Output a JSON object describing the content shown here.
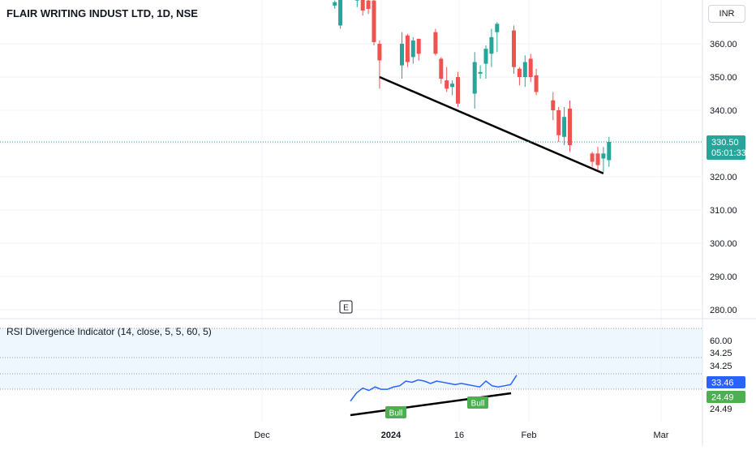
{
  "header": {
    "title": "FLAIR WRITING INDUST LTD, 1D, NSE",
    "currency": "INR"
  },
  "price_pane": {
    "last_price": "330.50",
    "countdown": "05:01:33",
    "event_marker": "E"
  },
  "indicator_pane": {
    "label": "RSI Divergence Indicator (14, close, 5, 5, 60, 5)",
    "levels": [
      "60.00",
      "34.25",
      "34.25",
      "24.49"
    ],
    "rsi_value": "33.46",
    "second_value": "24.49",
    "bull_label": "Bull"
  },
  "colors": {
    "up": "#26a69a",
    "down": "#ef5350",
    "rsi_line": "#2962ff",
    "divergence_line": "#4caf50",
    "trendline": "#000000",
    "band_fill": "#e3f2fd"
  },
  "chart_data": [
    {
      "type": "candlestick",
      "title": "FLAIR WRITING INDUST LTD, 1D, NSE",
      "ylabel": "INR",
      "ylim": [
        277,
        372
      ],
      "y_ticks": [
        360,
        350,
        340,
        330,
        320,
        310,
        300,
        290,
        280
      ],
      "x_ticks": [
        "Dec",
        "2024",
        "16",
        "Feb",
        "Mar"
      ],
      "current_price": 330.5,
      "ohlc": [
        {
          "date": "2023-12-14",
          "o": 371.5,
          "h": 373.0,
          "l": 370.5,
          "c": 372.5
        },
        {
          "date": "2023-12-15",
          "o": 365.5,
          "h": 376.0,
          "l": 364.5,
          "c": 375.0
        },
        {
          "date": "2023-12-18",
          "o": 373.0,
          "h": 378.0,
          "l": 371.0,
          "c": 375.0
        },
        {
          "date": "2023-12-19",
          "o": 374.0,
          "h": 376.5,
          "l": 368.5,
          "c": 370.0
        },
        {
          "date": "2023-12-20",
          "o": 373.0,
          "h": 374.5,
          "l": 369.0,
          "c": 370.5
        },
        {
          "date": "2023-12-21",
          "o": 373.0,
          "h": 374.0,
          "l": 359.5,
          "c": 360.5
        },
        {
          "date": "2023-12-22",
          "o": 360.0,
          "h": 361.0,
          "l": 346.5,
          "c": 355.0
        },
        {
          "date": "2023-12-26",
          "o": 353.5,
          "h": 363.5,
          "l": 349.5,
          "c": 360.0
        },
        {
          "date": "2023-12-27",
          "o": 362.5,
          "h": 363.0,
          "l": 353.0,
          "c": 354.5
        },
        {
          "date": "2023-12-28",
          "o": 356.0,
          "h": 362.0,
          "l": 354.0,
          "c": 361.0
        },
        {
          "date": "2023-12-29",
          "o": 361.5,
          "h": 361.5,
          "l": 355.0,
          "c": 357.0
        },
        {
          "date": "2024-01-01",
          "o": 363.5,
          "h": 364.5,
          "l": 356.5,
          "c": 357.0
        },
        {
          "date": "2024-01-02",
          "o": 355.5,
          "h": 356.0,
          "l": 348.0,
          "c": 349.5
        },
        {
          "date": "2024-01-03",
          "o": 349.0,
          "h": 353.0,
          "l": 345.5,
          "c": 346.5
        },
        {
          "date": "2024-01-04",
          "o": 347.0,
          "h": 349.0,
          "l": 344.5,
          "c": 348.0
        },
        {
          "date": "2024-01-05",
          "o": 350.0,
          "h": 351.5,
          "l": 341.0,
          "c": 342.0
        },
        {
          "date": "2024-01-08",
          "o": 345.0,
          "h": 357.5,
          "l": 340.5,
          "c": 354.5
        },
        {
          "date": "2024-01-09",
          "o": 351.0,
          "h": 353.5,
          "l": 349.5,
          "c": 351.5
        },
        {
          "date": "2024-01-10",
          "o": 354.0,
          "h": 359.5,
          "l": 349.5,
          "c": 358.5
        },
        {
          "date": "2024-01-11",
          "o": 357.0,
          "h": 364.5,
          "l": 353.0,
          "c": 362.0
        },
        {
          "date": "2024-01-12",
          "o": 363.5,
          "h": 366.5,
          "l": 357.5,
          "c": 366.0
        },
        {
          "date": "2024-01-15",
          "o": 364.0,
          "h": 365.5,
          "l": 351.0,
          "c": 353.0
        },
        {
          "date": "2024-01-16",
          "o": 352.5,
          "h": 353.0,
          "l": 347.5,
          "c": 350.0
        },
        {
          "date": "2024-01-17",
          "o": 350.0,
          "h": 356.5,
          "l": 347.0,
          "c": 354.5
        },
        {
          "date": "2024-01-18",
          "o": 355.5,
          "h": 357.0,
          "l": 348.5,
          "c": 350.0
        },
        {
          "date": "2024-01-19",
          "o": 350.5,
          "h": 352.5,
          "l": 344.5,
          "c": 345.5
        },
        {
          "date": "2024-01-22",
          "o": 343.0,
          "h": 345.5,
          "l": 337.0,
          "c": 340.0
        },
        {
          "date": "2024-01-23",
          "o": 340.0,
          "h": 341.0,
          "l": 330.5,
          "c": 332.5
        },
        {
          "date": "2024-01-24",
          "o": 332.0,
          "h": 341.0,
          "l": 329.5,
          "c": 338.0
        },
        {
          "date": "2024-01-25",
          "o": 340.5,
          "h": 343.0,
          "l": 327.5,
          "c": 329.5
        },
        {
          "date": "2024-01-29",
          "o": 327.0,
          "h": 327.5,
          "l": 323.0,
          "c": 324.5
        },
        {
          "date": "2024-01-30",
          "o": 327.0,
          "h": 329.0,
          "l": 322.0,
          "c": 323.5
        },
        {
          "date": "2024-01-31",
          "o": 325.5,
          "h": 329.0,
          "l": 321.5,
          "c": 327.0
        },
        {
          "date": "2024-02-01",
          "o": 325.0,
          "h": 332.0,
          "l": 323.0,
          "c": 330.5
        }
      ],
      "trendline": {
        "from": {
          "date": "2023-12-22",
          "value": 350
        },
        "to": {
          "date": "2024-01-31",
          "value": 321
        }
      }
    },
    {
      "type": "line",
      "title": "RSI Divergence Indicator (14, close, 5, 5, 60, 5)",
      "y_ticks": [
        "60.00",
        "34.25",
        "34.25",
        "24.49"
      ],
      "series": [
        {
          "values": [
            22.5,
            26,
            28,
            27,
            28.5,
            27.5,
            27.5,
            28.5,
            29,
            31,
            30.5,
            31.5,
            31,
            30,
            31,
            30.5,
            30,
            29.5,
            30,
            29.5,
            29,
            28.5,
            31,
            29,
            28.5,
            29,
            29.5,
            33.5
          ]
        }
      ],
      "divergences": [
        {
          "label": "Bull",
          "kind": "rsi",
          "from": 22.5,
          "to": 28.5
        },
        {
          "label": "Bull",
          "kind": "trend",
          "from": 22.5,
          "to": 28.5
        }
      ]
    }
  ]
}
